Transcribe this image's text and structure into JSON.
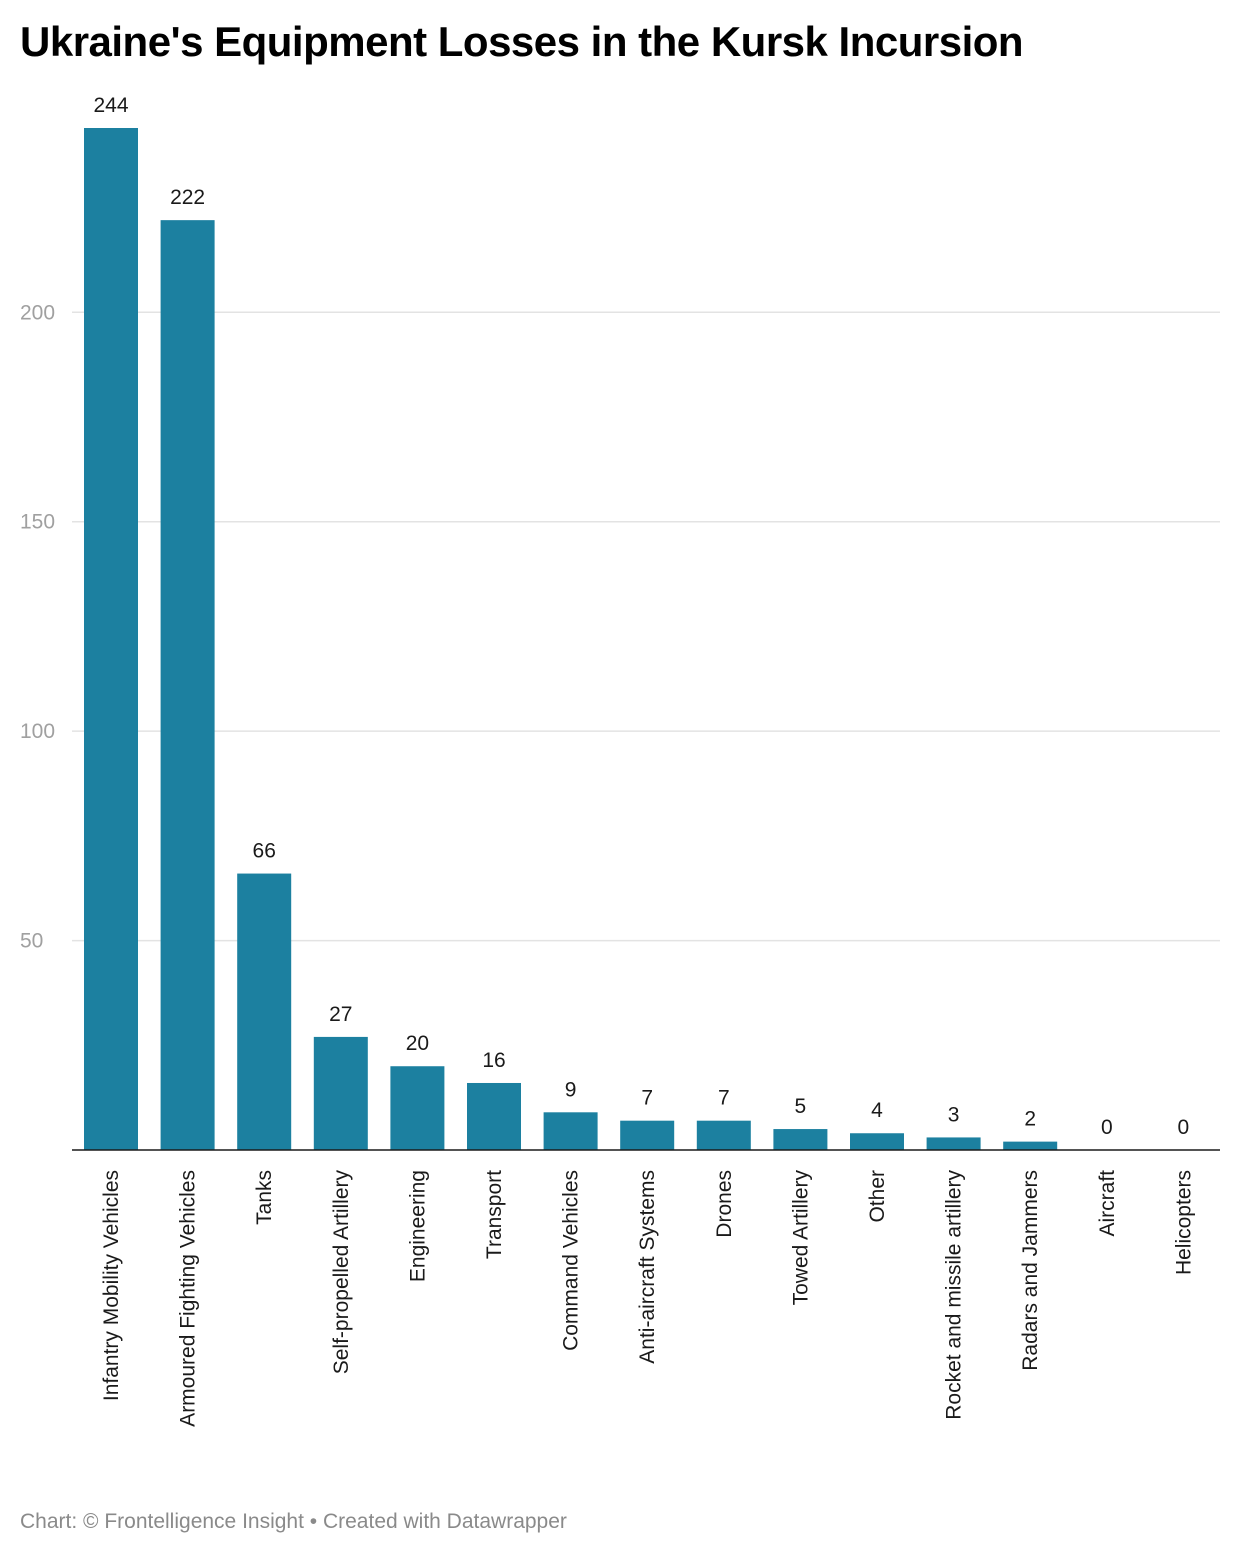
{
  "title": "Ukraine's Equipment Losses in the Kursk Incursion",
  "footer": {
    "source": "Chart: © Frontelligence Insight • Created with Datawrapper"
  },
  "colors": {
    "bar": "#1c80a0",
    "grid": "#e3e3e3",
    "axis": "#1a1a1a",
    "tick_label": "#a0a0a0",
    "value_label": "#1a1a1a",
    "category_label": "#1a1a1a"
  },
  "chart_data": {
    "type": "bar",
    "categories": [
      "Infantry Mobility Vehicles",
      "Armoured Fighting Vehicles",
      "Tanks",
      "Self-propelled Artillery",
      "Engineering",
      "Transport",
      "Command Vehicles",
      "Anti-aircraft Systems",
      "Drones",
      "Towed Artillery",
      "Other",
      "Rocket and missile artillery",
      "Radars and Jammers",
      "Aircraft",
      "Helicopters"
    ],
    "values": [
      244,
      222,
      66,
      27,
      20,
      16,
      9,
      7,
      7,
      5,
      4,
      3,
      2,
      0,
      0
    ],
    "yticks": [
      50,
      100,
      150,
      200
    ],
    "ylim": [
      0,
      244
    ],
    "grid": true,
    "data_labels": true,
    "orientation": "vertical",
    "category_label_rotation": "vertical"
  }
}
